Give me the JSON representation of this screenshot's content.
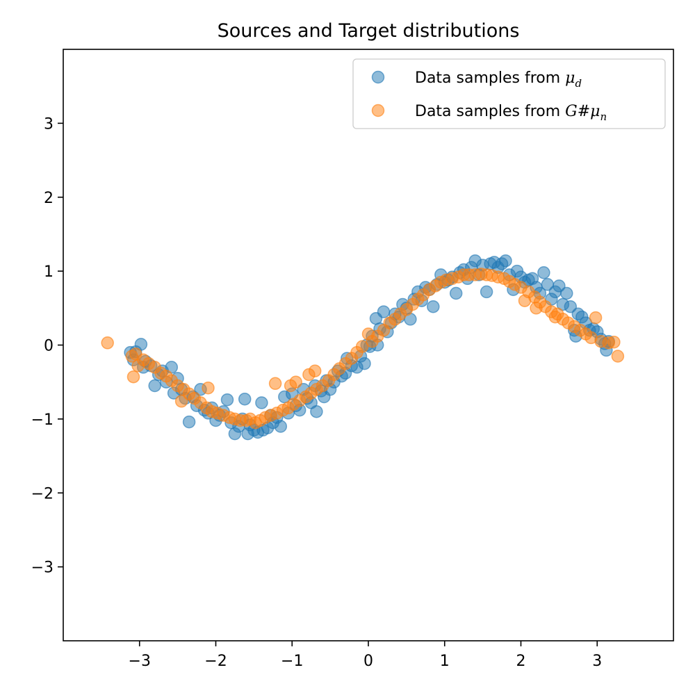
{
  "chart_data": {
    "type": "scatter",
    "title": "Sources and Target distributions",
    "xlabel": "",
    "ylabel": "",
    "xlim": [
      -4.0,
      4.0
    ],
    "ylim": [
      -4.0,
      4.0
    ],
    "x_ticks": [
      -3,
      -2,
      -1,
      0,
      1,
      2,
      3
    ],
    "y_ticks": [
      -3,
      -2,
      -1,
      0,
      1,
      2,
      3
    ],
    "x_tick_labels": [
      "−3",
      "−2",
      "−1",
      "0",
      "1",
      "2",
      "3"
    ],
    "y_tick_labels": [
      "−3",
      "−2",
      "−1",
      "0",
      "1",
      "2",
      "3"
    ],
    "grid": false,
    "legend_position": "top-right",
    "series": [
      {
        "name": "Data samples from μ_d",
        "legend_prefix": "Data samples from ",
        "legend_math": "μ",
        "legend_sub": "d",
        "color": "#1f77b4",
        "points": [
          [
            -3.12,
            -0.1
          ],
          [
            -3.05,
            -0.09
          ],
          [
            -2.98,
            0.01
          ],
          [
            -3.08,
            -0.2
          ],
          [
            -2.95,
            -0.3
          ],
          [
            -2.92,
            -0.22
          ],
          [
            -2.85,
            -0.28
          ],
          [
            -2.8,
            -0.55
          ],
          [
            -2.75,
            -0.4
          ],
          [
            -2.7,
            -0.35
          ],
          [
            -2.65,
            -0.5
          ],
          [
            -2.58,
            -0.3
          ],
          [
            -2.55,
            -0.65
          ],
          [
            -2.5,
            -0.45
          ],
          [
            -2.45,
            -0.6
          ],
          [
            -2.4,
            -0.72
          ],
          [
            -2.35,
            -1.04
          ],
          [
            -2.3,
            -0.7
          ],
          [
            -2.25,
            -0.82
          ],
          [
            -2.2,
            -0.6
          ],
          [
            -2.15,
            -0.88
          ],
          [
            -2.1,
            -0.92
          ],
          [
            -2.05,
            -0.85
          ],
          [
            -2.0,
            -1.02
          ],
          [
            -1.95,
            -0.95
          ],
          [
            -1.9,
            -0.9
          ],
          [
            -1.85,
            -0.74
          ],
          [
            -1.8,
            -1.05
          ],
          [
            -1.75,
            -1.2
          ],
          [
            -1.7,
            -1.1
          ],
          [
            -1.65,
            -1.0
          ],
          [
            -1.62,
            -0.73
          ],
          [
            -1.58,
            -1.2
          ],
          [
            -1.55,
            -1.08
          ],
          [
            -1.5,
            -1.15
          ],
          [
            -1.45,
            -1.18
          ],
          [
            -1.4,
            -0.78
          ],
          [
            -1.38,
            -1.15
          ],
          [
            -1.32,
            -1.12
          ],
          [
            -1.28,
            -0.95
          ],
          [
            -1.25,
            -1.05
          ],
          [
            -1.2,
            -0.98
          ],
          [
            -1.15,
            -1.1
          ],
          [
            -1.1,
            -0.7
          ],
          [
            -1.05,
            -0.92
          ],
          [
            -1.0,
            -0.66
          ],
          [
            -0.95,
            -0.82
          ],
          [
            -0.9,
            -0.88
          ],
          [
            -0.85,
            -0.6
          ],
          [
            -0.8,
            -0.72
          ],
          [
            -0.75,
            -0.78
          ],
          [
            -0.7,
            -0.55
          ],
          [
            -0.68,
            -0.9
          ],
          [
            -0.62,
            -0.62
          ],
          [
            -0.58,
            -0.7
          ],
          [
            -0.55,
            -0.48
          ],
          [
            -0.5,
            -0.6
          ],
          [
            -0.45,
            -0.5
          ],
          [
            -0.4,
            -0.35
          ],
          [
            -0.35,
            -0.42
          ],
          [
            -0.3,
            -0.38
          ],
          [
            -0.28,
            -0.18
          ],
          [
            -0.22,
            -0.28
          ],
          [
            -0.15,
            -0.3
          ],
          [
            -0.1,
            -0.15
          ],
          [
            -0.05,
            -0.25
          ],
          [
            -0.02,
            0.0
          ],
          [
            0.02,
            -0.02
          ],
          [
            0.05,
            0.12
          ],
          [
            0.1,
            0.36
          ],
          [
            0.12,
            0.0
          ],
          [
            0.15,
            0.22
          ],
          [
            0.2,
            0.45
          ],
          [
            0.25,
            0.18
          ],
          [
            0.3,
            0.3
          ],
          [
            0.35,
            0.42
          ],
          [
            0.4,
            0.38
          ],
          [
            0.45,
            0.55
          ],
          [
            0.5,
            0.5
          ],
          [
            0.55,
            0.35
          ],
          [
            0.6,
            0.62
          ],
          [
            0.65,
            0.72
          ],
          [
            0.7,
            0.6
          ],
          [
            0.75,
            0.78
          ],
          [
            0.8,
            0.75
          ],
          [
            0.85,
            0.52
          ],
          [
            0.9,
            0.82
          ],
          [
            0.95,
            0.95
          ],
          [
            1.0,
            0.85
          ],
          [
            1.05,
            0.88
          ],
          [
            1.1,
            0.92
          ],
          [
            1.15,
            0.7
          ],
          [
            1.2,
            0.98
          ],
          [
            1.25,
            1.02
          ],
          [
            1.3,
            0.9
          ],
          [
            1.35,
            1.05
          ],
          [
            1.4,
            1.14
          ],
          [
            1.45,
            0.95
          ],
          [
            1.5,
            1.08
          ],
          [
            1.55,
            0.72
          ],
          [
            1.6,
            1.1
          ],
          [
            1.65,
            1.12
          ],
          [
            1.7,
            1.05
          ],
          [
            1.75,
            1.1
          ],
          [
            1.8,
            1.14
          ],
          [
            1.85,
            0.95
          ],
          [
            1.9,
            0.75
          ],
          [
            1.95,
            1.0
          ],
          [
            2.0,
            0.92
          ],
          [
            2.05,
            0.85
          ],
          [
            2.1,
            0.88
          ],
          [
            2.15,
            0.9
          ],
          [
            2.2,
            0.78
          ],
          [
            2.25,
            0.7
          ],
          [
            2.3,
            0.98
          ],
          [
            2.35,
            0.82
          ],
          [
            2.4,
            0.62
          ],
          [
            2.45,
            0.72
          ],
          [
            2.5,
            0.8
          ],
          [
            2.55,
            0.55
          ],
          [
            2.6,
            0.7
          ],
          [
            2.65,
            0.52
          ],
          [
            2.7,
            0.2
          ],
          [
            2.72,
            0.12
          ],
          [
            2.75,
            0.42
          ],
          [
            2.8,
            0.38
          ],
          [
            2.85,
            0.3
          ],
          [
            2.9,
            0.2
          ],
          [
            2.95,
            0.22
          ],
          [
            3.0,
            0.18
          ],
          [
            3.05,
            0.08
          ],
          [
            3.1,
            0.02
          ],
          [
            3.12,
            -0.07
          ],
          [
            3.15,
            0.05
          ]
        ]
      },
      {
        "name": "Data samples from G#μ_n",
        "legend_prefix": "Data samples from ",
        "legend_math": "G#μ",
        "legend_sub": "n",
        "color": "#ff7f0e",
        "points": [
          [
            -3.42,
            0.03
          ],
          [
            -3.1,
            -0.15
          ],
          [
            -3.08,
            -0.43
          ],
          [
            -3.05,
            -0.12
          ],
          [
            -3.02,
            -0.28
          ],
          [
            -2.95,
            -0.2
          ],
          [
            -2.88,
            -0.25
          ],
          [
            -2.8,
            -0.3
          ],
          [
            -2.72,
            -0.38
          ],
          [
            -2.65,
            -0.42
          ],
          [
            -2.58,
            -0.48
          ],
          [
            -2.5,
            -0.55
          ],
          [
            -2.45,
            -0.76
          ],
          [
            -2.42,
            -0.6
          ],
          [
            -2.35,
            -0.66
          ],
          [
            -2.28,
            -0.72
          ],
          [
            -2.2,
            -0.78
          ],
          [
            -2.12,
            -0.85
          ],
          [
            -2.1,
            -0.58
          ],
          [
            -2.05,
            -0.9
          ],
          [
            -1.98,
            -0.92
          ],
          [
            -1.9,
            -0.95
          ],
          [
            -1.82,
            -0.98
          ],
          [
            -1.75,
            -1.0
          ],
          [
            -1.68,
            -1.02
          ],
          [
            -1.6,
            -1.02
          ],
          [
            -1.55,
            -1.0
          ],
          [
            -1.48,
            -1.05
          ],
          [
            -1.42,
            -1.02
          ],
          [
            -1.35,
            -0.98
          ],
          [
            -1.28,
            -0.95
          ],
          [
            -1.22,
            -0.52
          ],
          [
            -1.2,
            -0.92
          ],
          [
            -1.12,
            -0.88
          ],
          [
            -1.05,
            -0.85
          ],
          [
            -1.02,
            -0.55
          ],
          [
            -0.98,
            -0.8
          ],
          [
            -0.95,
            -0.5
          ],
          [
            -0.9,
            -0.75
          ],
          [
            -0.82,
            -0.7
          ],
          [
            -0.78,
            -0.4
          ],
          [
            -0.75,
            -0.65
          ],
          [
            -0.7,
            -0.35
          ],
          [
            -0.68,
            -0.6
          ],
          [
            -0.6,
            -0.55
          ],
          [
            -0.52,
            -0.48
          ],
          [
            -0.45,
            -0.4
          ],
          [
            -0.38,
            -0.32
          ],
          [
            -0.3,
            -0.25
          ],
          [
            -0.22,
            -0.18
          ],
          [
            -0.15,
            -0.1
          ],
          [
            -0.08,
            -0.02
          ],
          [
            0.0,
            0.15
          ],
          [
            0.05,
            0.05
          ],
          [
            0.12,
            0.12
          ],
          [
            0.2,
            0.2
          ],
          [
            0.28,
            0.3
          ],
          [
            0.35,
            0.35
          ],
          [
            0.42,
            0.42
          ],
          [
            0.5,
            0.48
          ],
          [
            0.58,
            0.55
          ],
          [
            0.65,
            0.62
          ],
          [
            0.72,
            0.68
          ],
          [
            0.8,
            0.75
          ],
          [
            0.88,
            0.8
          ],
          [
            0.95,
            0.85
          ],
          [
            1.02,
            0.88
          ],
          [
            1.1,
            0.9
          ],
          [
            1.18,
            0.92
          ],
          [
            1.25,
            0.95
          ],
          [
            1.32,
            0.95
          ],
          [
            1.4,
            0.95
          ],
          [
            1.48,
            0.96
          ],
          [
            1.55,
            0.95
          ],
          [
            1.62,
            0.94
          ],
          [
            1.7,
            0.92
          ],
          [
            1.78,
            0.9
          ],
          [
            1.85,
            0.86
          ],
          [
            1.92,
            0.82
          ],
          [
            2.0,
            0.78
          ],
          [
            2.05,
            0.6
          ],
          [
            2.1,
            0.72
          ],
          [
            2.18,
            0.65
          ],
          [
            2.2,
            0.5
          ],
          [
            2.25,
            0.58
          ],
          [
            2.32,
            0.52
          ],
          [
            2.4,
            0.45
          ],
          [
            2.45,
            0.38
          ],
          [
            2.48,
            0.42
          ],
          [
            2.55,
            0.35
          ],
          [
            2.62,
            0.3
          ],
          [
            2.7,
            0.25
          ],
          [
            2.78,
            0.2
          ],
          [
            2.85,
            0.15
          ],
          [
            2.92,
            0.1
          ],
          [
            2.98,
            0.37
          ],
          [
            3.05,
            0.05
          ],
          [
            3.15,
            0.03
          ],
          [
            3.22,
            0.04
          ],
          [
            3.27,
            -0.15
          ]
        ]
      }
    ]
  }
}
